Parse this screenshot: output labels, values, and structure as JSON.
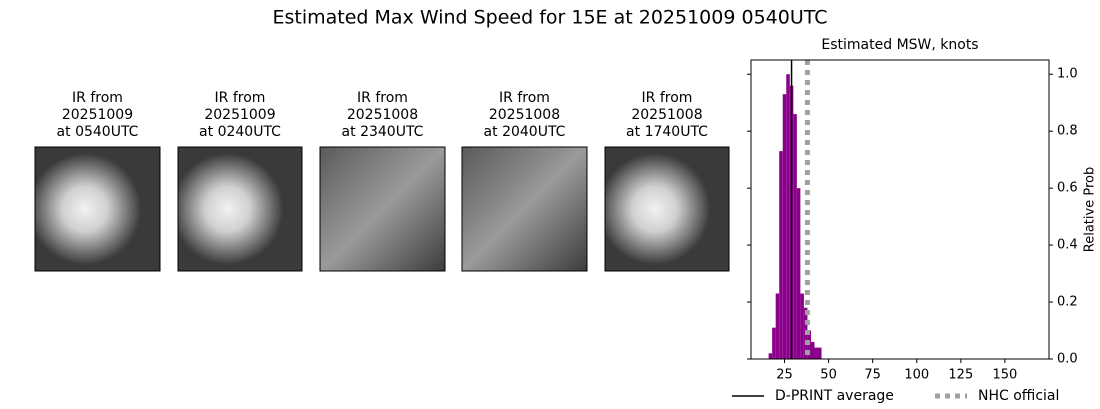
{
  "title": "Estimated Max Wind Speed for 15E at 20251009 0540UTC",
  "panels": [
    [
      "IR from",
      "20251009",
      "at 0540UTC"
    ],
    [
      "IR from",
      "20251009",
      "at 0240UTC"
    ],
    [
      "IR from",
      "20251008",
      "at 2340UTC"
    ],
    [
      "IR from",
      "20251008",
      "at 2040UTC"
    ],
    [
      "IR from",
      "20251008",
      "at 1740UTC"
    ]
  ],
  "chart_data": {
    "type": "histogram",
    "title": "Estimated MSW, knots",
    "y_label": "Relative Prob",
    "bins": [
      16,
      18,
      20,
      22,
      24,
      26,
      28,
      30,
      32,
      34,
      36,
      38,
      40,
      42,
      44,
      46
    ],
    "counts": [
      0.02,
      0.11,
      0.23,
      0.73,
      0.93,
      1.0,
      0.96,
      0.86,
      0.6,
      0.23,
      0.18,
      0.1,
      0.06,
      0.04,
      0.04
    ],
    "color": "#8b008b",
    "xlim": [
      6,
      175
    ],
    "xticks": [
      25,
      50,
      75,
      100,
      125,
      150
    ],
    "ylim": [
      0,
      1.05
    ],
    "yticks": [
      {
        "value": 0,
        "label": "0.0"
      },
      0.2,
      0.4,
      0.6,
      0.8,
      {
        "value": 1,
        "label": "1.0"
      }
    ],
    "yaxis_side": "right",
    "vlines": [
      {
        "name": "D-PRINT average",
        "value": 29,
        "color": "#000000",
        "style": "solid"
      },
      {
        "name": "NHC official",
        "value": 38,
        "color": "#a0a0a0",
        "style": "dotted"
      }
    ]
  }
}
